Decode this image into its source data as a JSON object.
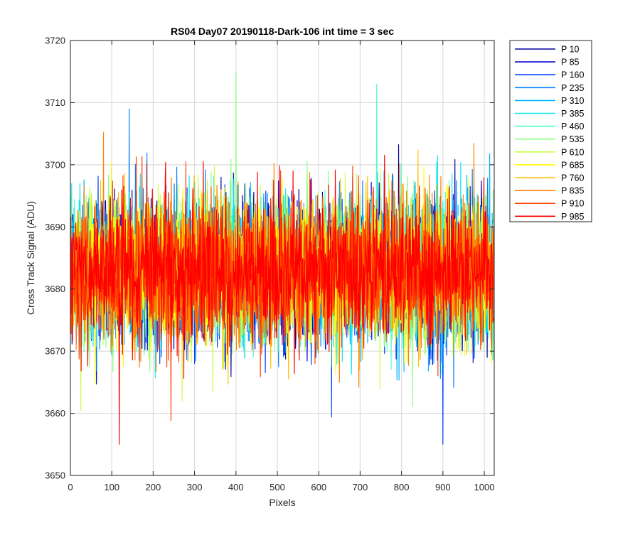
{
  "chart_data": {
    "type": "line",
    "title": "RS04 Day07 20190118-Dark-106 int time = 3 sec",
    "xlabel": "Pixels",
    "ylabel": "Cross Track Signal (ADU)",
    "xlim": [
      0,
      1024
    ],
    "ylim": [
      3650,
      3720
    ],
    "x_ticks": [
      0,
      100,
      200,
      300,
      400,
      500,
      600,
      700,
      800,
      900,
      1000
    ],
    "y_ticks": [
      3650,
      3660,
      3670,
      3680,
      3690,
      3700,
      3710,
      3720
    ],
    "grid": true,
    "legend_position": "outside-top-right",
    "x_values": "pixel index 0 to 1023",
    "approx_mean": 3683,
    "approx_noise_range": [
      3655,
      3715
    ],
    "series": [
      {
        "name": "P 10",
        "color": "#0000a0"
      },
      {
        "name": "P 85",
        "color": "#0000dc"
      },
      {
        "name": "P 160",
        "color": "#0040ff"
      },
      {
        "name": "P 235",
        "color": "#0080ff"
      },
      {
        "name": "P 310",
        "color": "#00b4ff"
      },
      {
        "name": "P 385",
        "color": "#10e8f0"
      },
      {
        "name": "P 460",
        "color": "#50ffc0"
      },
      {
        "name": "P 535",
        "color": "#8cff80"
      },
      {
        "name": "P 610",
        "color": "#c8ff40"
      },
      {
        "name": "P 685",
        "color": "#ffff00"
      },
      {
        "name": "P 760",
        "color": "#ffc000"
      },
      {
        "name": "P 835",
        "color": "#ff8000"
      },
      {
        "name": "P 910",
        "color": "#ff4000"
      },
      {
        "name": "P 985",
        "color": "#ff0000"
      }
    ],
    "notable_points": [
      {
        "series": "P 535",
        "x": 400,
        "y": 3715
      },
      {
        "series": "P 460",
        "x": 740,
        "y": 3713
      },
      {
        "series": "P 235",
        "x": 142,
        "y": 3709
      },
      {
        "series": "P 160",
        "x": 900,
        "y": 3655
      },
      {
        "series": "P 985",
        "x": 118,
        "y": 3655
      }
    ]
  }
}
